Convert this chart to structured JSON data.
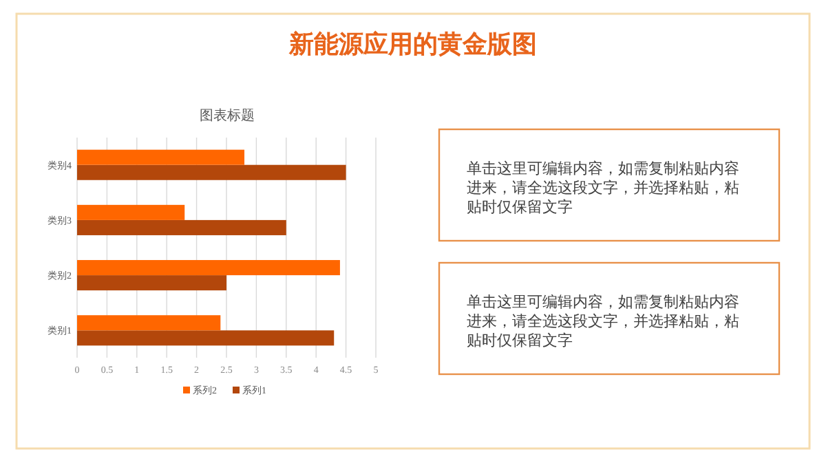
{
  "chart_data": [
    {
      "type": "bar",
      "orientation": "horizontal",
      "title": "新能源应用的黄金版图",
      "subtitle": "图表标题",
      "categories": [
        "类别4",
        "类别3",
        "类别2",
        "类别1"
      ],
      "series": [
        {
          "name": "系列1",
          "color": "#b3470b",
          "values": [
            4.5,
            3.5,
            2.5,
            4.3
          ]
        },
        {
          "name": "系列2",
          "color": "#ff6600",
          "values": [
            2.8,
            1.8,
            4.4,
            2.4
          ]
        }
      ],
      "xlim": [
        0,
        5
      ],
      "xticks": [
        0,
        0.5,
        1,
        1.5,
        2,
        2.5,
        3,
        3.5,
        4,
        4.5,
        5
      ],
      "grid": "x",
      "legend": "bottom"
    },
    {
      "type": "other",
      "annotations": [
        "单击这里可编辑内容，如需复制粘贴内容进来，请全选这段文字，并选择粘贴，粘贴时仅保留文字"
      ]
    },
    {
      "type": "other",
      "annotations": [
        "单击这里可编辑内容，如需复制粘贴内容进来，请全选这段文字，并选择粘贴，粘贴时仅保留文字"
      ]
    }
  ]
}
